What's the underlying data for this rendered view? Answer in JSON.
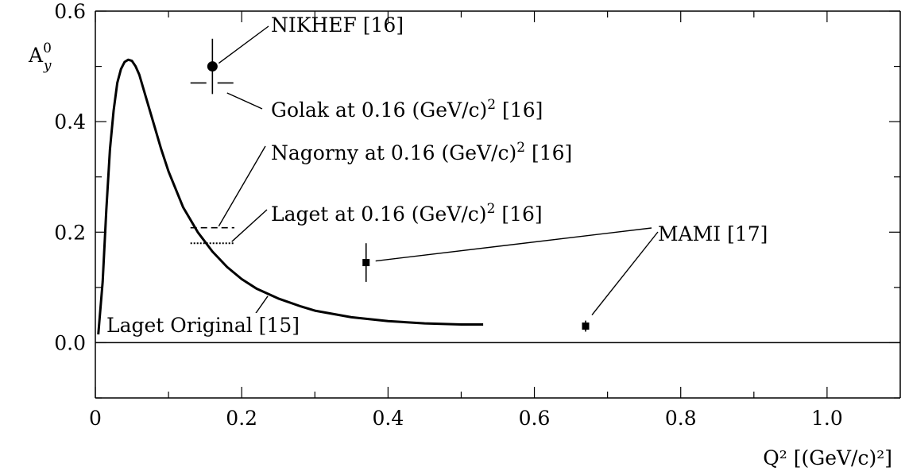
{
  "chart_data": {
    "type": "line",
    "title": "",
    "xlabel": "Q² [(GeV/c)²]",
    "ylabel": "A",
    "ylabel_sup": "0",
    "ylabel_sub": "y",
    "xlim": [
      0,
      1.1
    ],
    "ylim": [
      -0.1,
      0.6
    ],
    "x_ticks": [
      0,
      0.2,
      0.4,
      0.6,
      0.8,
      1.0
    ],
    "x_tick_labels": [
      "0",
      "0.2",
      "0.4",
      "0.6",
      "0.8",
      "1.0"
    ],
    "x_minor_ticks": [
      0.1,
      0.3,
      0.5,
      0.7,
      0.9
    ],
    "y_ticks": [
      0.0,
      0.2,
      0.4,
      0.6
    ],
    "y_tick_labels": [
      "0.0",
      "0.2",
      "0.4",
      "0.6"
    ],
    "y_minor_ticks": [
      -0.1,
      0.1,
      0.3,
      0.5
    ],
    "zero_line": 0.0,
    "grid": false,
    "curve": {
      "name": "Laget Original [15]",
      "x": [
        0.004,
        0.01,
        0.015,
        0.02,
        0.025,
        0.03,
        0.035,
        0.04,
        0.045,
        0.05,
        0.055,
        0.06,
        0.07,
        0.08,
        0.09,
        0.1,
        0.12,
        0.14,
        0.16,
        0.18,
        0.2,
        0.22,
        0.25,
        0.28,
        0.3,
        0.35,
        0.4,
        0.45,
        0.5,
        0.53
      ],
      "y": [
        0.015,
        0.11,
        0.24,
        0.35,
        0.42,
        0.47,
        0.495,
        0.508,
        0.512,
        0.51,
        0.5,
        0.485,
        0.44,
        0.395,
        0.35,
        0.31,
        0.245,
        0.2,
        0.165,
        0.137,
        0.115,
        0.098,
        0.08,
        0.066,
        0.058,
        0.046,
        0.039,
        0.035,
        0.033,
        0.033
      ]
    },
    "points": [
      {
        "name": "NIKHEF [16]",
        "x": 0.16,
        "y": 0.5,
        "yerr": 0.05,
        "marker": "circle"
      },
      {
        "name": "MAMI [17]",
        "x": 0.37,
        "y": 0.145,
        "yerr": 0.035,
        "marker": "square"
      },
      {
        "name": "MAMI [17]",
        "x": 0.67,
        "y": 0.03,
        "yerr": 0.01,
        "marker": "square"
      }
    ],
    "theory_marks": [
      {
        "name": "Golak at 0.16 (GeV/c)² [16]",
        "x0": 0.13,
        "x1": 0.19,
        "y": 0.47,
        "style": "long-dash"
      },
      {
        "name": "Nagorny at 0.16 (GeV/c)² [16]",
        "x0": 0.13,
        "x1": 0.19,
        "y": 0.208,
        "style": "dashed"
      },
      {
        "name": "Laget at 0.16 (GeV/c)² [16]",
        "x0": 0.13,
        "x1": 0.19,
        "y": 0.18,
        "style": "dotted"
      }
    ],
    "annotations": [
      {
        "text": "NIKHEF [16]"
      },
      {
        "text": "Golak at 0.16 (GeV/c)"
      },
      {
        "text": "Nagorny at 0.16 (GeV/c)"
      },
      {
        "text": "Laget at 0.16 (GeV/c)"
      },
      {
        "text": "MAMI [17]"
      },
      {
        "text": "Laget Original [15]"
      }
    ],
    "annotation_suffix": " [16]",
    "annotation_sup": "2"
  }
}
